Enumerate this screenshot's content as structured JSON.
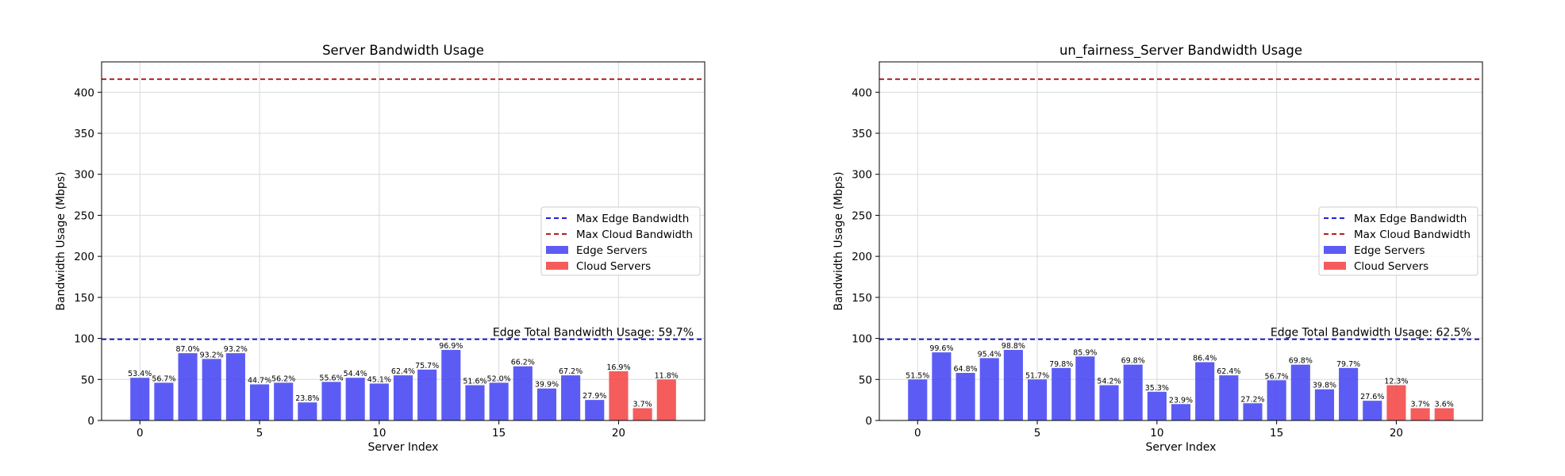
{
  "chart_data": [
    {
      "type": "bar",
      "title": "Server Bandwidth Usage",
      "xlabel": "Server Index",
      "ylabel": "Bandwidth Usage (Mbps)",
      "xlim": [
        -1.6,
        23.6
      ],
      "ylim": [
        0,
        437
      ],
      "xticks": [
        0,
        5,
        10,
        15,
        20
      ],
      "yticks": [
        0,
        50,
        100,
        150,
        200,
        250,
        300,
        350,
        400
      ],
      "grid": true,
      "legend_position": "center-right",
      "x": [
        0,
        1,
        2,
        3,
        4,
        5,
        6,
        7,
        8,
        9,
        10,
        11,
        12,
        13,
        14,
        15,
        16,
        17,
        18,
        19,
        20,
        21,
        22
      ],
      "series": [
        {
          "name": "Edge Servers",
          "color": "#4a4af4",
          "x": [
            0,
            1,
            2,
            3,
            4,
            5,
            6,
            7,
            8,
            9,
            10,
            11,
            12,
            13,
            14,
            15,
            16,
            17,
            18,
            19
          ],
          "values": [
            52,
            46,
            82,
            75,
            82,
            44,
            46,
            22,
            47,
            52,
            45,
            55,
            62,
            86,
            43,
            46,
            66,
            39,
            55,
            25
          ],
          "labels": [
            "53.4%",
            "56.7%",
            "87.0%",
            "93.2%",
            "93.2%",
            "44.7%",
            "56.2%",
            "23.8%",
            "55.6%",
            "54.4%",
            "45.1%",
            "62.4%",
            "75.7%",
            "96.9%",
            "51.6%",
            "52.0%",
            "66.2%",
            "39.9%",
            "67.2%",
            "27.9%"
          ]
        },
        {
          "name": "Cloud Servers",
          "color": "#f44a4a",
          "x": [
            20,
            21,
            22
          ],
          "values": [
            60,
            15,
            50
          ],
          "labels": [
            "16.9%",
            "3.7%",
            "11.8%"
          ]
        }
      ],
      "reference_lines": [
        {
          "name": "Max Edge Bandwidth",
          "value": 99,
          "color": "#0000cc",
          "dash": "6,4"
        },
        {
          "name": "Max Cloud Bandwidth",
          "value": 416,
          "color": "#aa0000",
          "dash": "6,4"
        }
      ],
      "annotation": "Edge Total Bandwidth Usage: 59.7%"
    },
    {
      "type": "bar",
      "title": "un_fairness_Server Bandwidth Usage",
      "xlabel": "Server Index",
      "ylabel": "Bandwidth Usage (Mbps)",
      "xlim": [
        -1.6,
        23.6
      ],
      "ylim": [
        0,
        437
      ],
      "xticks": [
        0,
        5,
        10,
        15,
        20
      ],
      "yticks": [
        0,
        50,
        100,
        150,
        200,
        250,
        300,
        350,
        400
      ],
      "grid": true,
      "legend_position": "center-right",
      "x": [
        0,
        1,
        2,
        3,
        4,
        5,
        6,
        7,
        8,
        9,
        10,
        11,
        12,
        13,
        14,
        15,
        16,
        17,
        18,
        19,
        20,
        21,
        22
      ],
      "series": [
        {
          "name": "Edge Servers",
          "color": "#4a4af4",
          "x": [
            0,
            1,
            2,
            3,
            4,
            5,
            6,
            7,
            8,
            9,
            10,
            11,
            12,
            13,
            14,
            15,
            16,
            17,
            18,
            19
          ],
          "values": [
            50,
            83,
            58,
            76,
            86,
            50,
            64,
            78,
            43,
            68,
            35,
            20,
            71,
            55,
            21,
            49,
            68,
            38,
            64,
            24
          ],
          "labels": [
            "51.5%",
            "99.6%",
            "64.8%",
            "95.4%",
            "98.8%",
            "51.7%",
            "79.8%",
            "85.9%",
            "54.2%",
            "69.8%",
            "35.3%",
            "23.9%",
            "86.4%",
            "62.4%",
            "27.2%",
            "56.7%",
            "69.8%",
            "39.8%",
            "79.7%",
            "27.6%"
          ]
        },
        {
          "name": "Cloud Servers",
          "color": "#f44a4a",
          "x": [
            20,
            21,
            22
          ],
          "values": [
            43,
            15,
            15
          ],
          "labels": [
            "12.3%",
            "3.7%",
            "3.6%"
          ]
        }
      ],
      "reference_lines": [
        {
          "name": "Max Edge Bandwidth",
          "value": 99,
          "color": "#0000cc",
          "dash": "6,4"
        },
        {
          "name": "Max Cloud Bandwidth",
          "value": 416,
          "color": "#aa0000",
          "dash": "6,4"
        }
      ],
      "annotation": "Edge Total Bandwidth Usage: 62.5%"
    }
  ]
}
